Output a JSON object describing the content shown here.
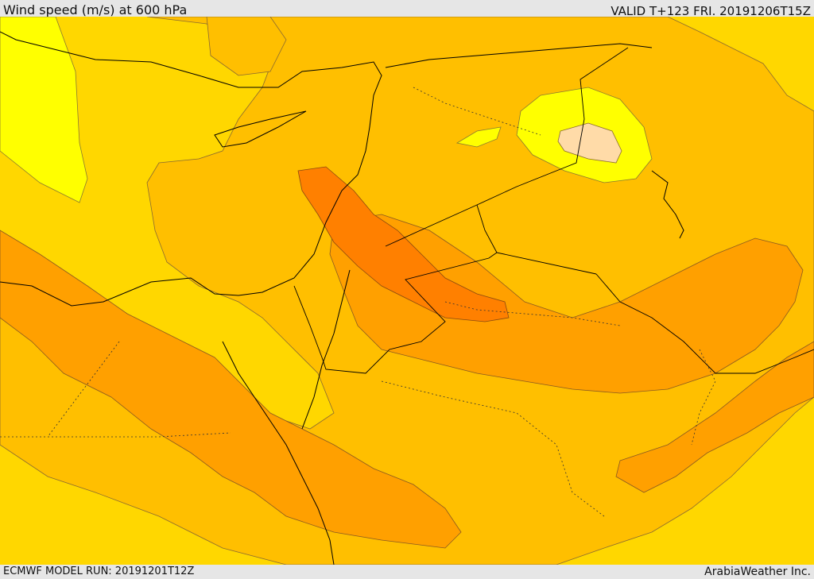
{
  "header": {
    "title": "Wind speed (m/s) at 600 hPa",
    "valid": "VALID T+123 FRI. 20191206T15Z"
  },
  "footer": {
    "model_run": "ECMWF MODEL RUN: 20191201T12Z",
    "credit": "ArabiaWeather Inc."
  },
  "map": {
    "variable": "Wind speed",
    "units": "m/s",
    "level": "600 hPa",
    "palette": {
      "lightest": "#ffff00",
      "light": "#ffd700",
      "medium": "#ffbf00",
      "strong": "#ffa000",
      "stronger": "#ff8000",
      "calm": "#ffdba8"
    }
  }
}
